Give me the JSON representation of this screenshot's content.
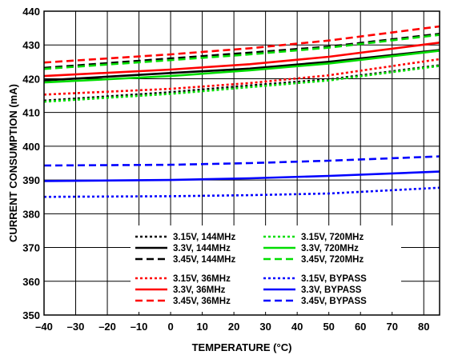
{
  "chart_data": {
    "type": "line",
    "title": "",
    "xlabel": "TEMPERATURE (°C)",
    "ylabel": "CURRENT CONSUMPTION (mA)",
    "xlim": [
      -40,
      85
    ],
    "ylim": [
      350,
      440
    ],
    "grid": true,
    "legend_position": "bottom-center",
    "x_ticks": [
      "–40",
      "–30",
      "–20",
      "–10",
      "0",
      "10",
      "20",
      "30",
      "40",
      "50",
      "60",
      "70",
      "80"
    ],
    "y_ticks": [
      "350",
      "360",
      "370",
      "380",
      "390",
      "400",
      "410",
      "420",
      "430",
      "440"
    ],
    "x": [
      -40,
      0,
      25,
      50,
      85
    ],
    "series": [
      {
        "name": "3.15V, 144MHz",
        "color": "#000000",
        "style": "dotted",
        "values": [
          413.5,
          416.0,
          418.0,
          419.8,
          424.0
        ]
      },
      {
        "name": "3.3V, 144MHz",
        "color": "#000000",
        "style": "solid",
        "values": [
          419.5,
          421.7,
          423.0,
          425.0,
          428.5
        ]
      },
      {
        "name": "3.45V, 144MHz",
        "color": "#000000",
        "style": "dashed",
        "values": [
          423.2,
          426.0,
          427.7,
          429.5,
          433.3
        ]
      },
      {
        "name": "3.15V, 36MHz",
        "color": "#ff0000",
        "style": "dotted",
        "values": [
          415.3,
          417.0,
          418.7,
          421.0,
          425.8
        ]
      },
      {
        "name": "3.3V, 36MHz",
        "color": "#ff0000",
        "style": "solid",
        "values": [
          420.8,
          422.7,
          424.3,
          426.5,
          430.7
        ]
      },
      {
        "name": "3.45V, 36MHz",
        "color": "#ff0000",
        "style": "dashed",
        "values": [
          424.8,
          427.2,
          429.0,
          431.3,
          435.5
        ]
      },
      {
        "name": "3.15V, 720MHz",
        "color": "#00dd00",
        "style": "dotted",
        "values": [
          413.2,
          415.5,
          417.5,
          419.5,
          423.8
        ]
      },
      {
        "name": "3.3V, 720MHz",
        "color": "#00dd00",
        "style": "solid",
        "values": [
          418.9,
          420.8,
          422.5,
          424.5,
          428.3
        ]
      },
      {
        "name": "3.45V, 720MHz",
        "color": "#00dd00",
        "style": "dashed",
        "values": [
          422.9,
          425.5,
          427.2,
          429.2,
          433.0
        ]
      },
      {
        "name": "3.15V, BYPASS",
        "color": "#0000ff",
        "style": "dotted",
        "values": [
          385.0,
          385.2,
          385.5,
          386.0,
          387.7
        ]
      },
      {
        "name": "3.3V, BYPASS",
        "color": "#0000ff",
        "style": "solid",
        "values": [
          389.7,
          390.0,
          390.5,
          391.2,
          392.5
        ]
      },
      {
        "name": "3.45V, BYPASS",
        "color": "#0000ff",
        "style": "dashed",
        "values": [
          394.3,
          394.5,
          395.0,
          395.7,
          397.0
        ]
      }
    ],
    "legend_columns": [
      [
        "3.15V, 144MHz",
        "3.3V, 144MHz",
        "3.45V, 144MHz",
        "3.15V, 36MHz",
        "3.3V, 36MHz",
        "3.45V, 36MHz"
      ],
      [
        "3.15V, 720MHz",
        "3.3V, 720MHz",
        "3.45V, 720MHz",
        "3.15V, BYPASS",
        "3.3V, BYPASS",
        "3.45V, BYPASS"
      ]
    ]
  }
}
